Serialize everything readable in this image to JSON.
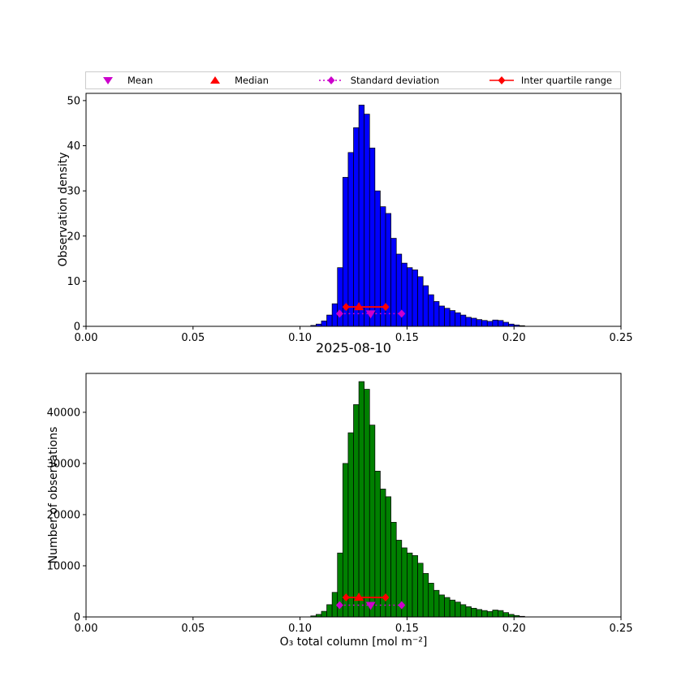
{
  "figure": {
    "title": "2025-08-10",
    "xlabel": "O₃ total column [mol m⁻²]",
    "background": "#ffffff"
  },
  "legend": {
    "items": [
      {
        "label": "Mean",
        "marker": "triangle-down",
        "line": "none",
        "color": "#cc00cc"
      },
      {
        "label": "Median",
        "marker": "triangle-up",
        "line": "none",
        "color": "#ff0000"
      },
      {
        "label": "Standard deviation",
        "marker": "diamond",
        "line": "dotted",
        "color": "#cc00cc"
      },
      {
        "label": "Inter quartile range",
        "marker": "diamond",
        "line": "solid",
        "color": "#ff0000"
      }
    ]
  },
  "chart_data": [
    {
      "type": "bar",
      "name": "observation-density-histogram",
      "ylabel": "Observation density",
      "bar_color": "#0000ff",
      "edge_color": "#000000",
      "bin_start": 0.105,
      "bin_width": 0.0025,
      "values": [
        0.2,
        0.5,
        1.2,
        2.5,
        5,
        13,
        33,
        38.5,
        44,
        49,
        47,
        39.5,
        30,
        26.5,
        25,
        19.5,
        16,
        14,
        13,
        12.5,
        11,
        9,
        7,
        5.5,
        4.5,
        4,
        3.5,
        3,
        2.5,
        2,
        1.8,
        1.5,
        1.3,
        1.1,
        1.4,
        1.3,
        0.9,
        0.5,
        0.3,
        0.15
      ],
      "xlim": [
        0,
        0.25
      ],
      "ylim": [
        0,
        51.6
      ],
      "xticks": {
        "values": [
          0,
          0.05,
          0.1,
          0.15,
          0.2,
          0.25
        ],
        "labels": [
          "0.00",
          "0.05",
          "0.10",
          "0.15",
          "0.20",
          "0.25"
        ]
      },
      "yticks": {
        "values": [
          0,
          10,
          20,
          30,
          40,
          50
        ],
        "labels": [
          "0",
          "10",
          "20",
          "30",
          "40",
          "50"
        ]
      },
      "marker_colors": {
        "mean": "#cc00cc",
        "median": "#ff0000",
        "std": "#cc00cc",
        "iqr": "#ff0000"
      },
      "markers": {
        "mean": {
          "x": 0.133,
          "y": 2.8
        },
        "median": {
          "x": 0.1275,
          "y": 4.3
        },
        "std": {
          "x1": 0.1185,
          "x2": 0.1475,
          "y": 2.8
        },
        "iqr": {
          "x1": 0.1215,
          "x2": 0.14,
          "y": 4.3
        }
      }
    },
    {
      "type": "bar",
      "name": "number-of-observations-histogram",
      "ylabel": "Number of observations",
      "bar_color": "#008000",
      "edge_color": "#000000",
      "bin_start": 0.105,
      "bin_width": 0.0025,
      "values": [
        200,
        500,
        1100,
        2400,
        4800,
        12500,
        30000,
        36000,
        41500,
        46000,
        44500,
        37500,
        28500,
        25000,
        23500,
        18500,
        15000,
        13500,
        12500,
        12000,
        10500,
        8500,
        6600,
        5200,
        4300,
        3800,
        3300,
        2900,
        2400,
        2000,
        1700,
        1450,
        1250,
        1050,
        1350,
        1250,
        850,
        500,
        280,
        120
      ],
      "xlim": [
        0,
        0.25
      ],
      "ylim": [
        0,
        47600
      ],
      "xticks": {
        "values": [
          0,
          0.05,
          0.1,
          0.15,
          0.2,
          0.25
        ],
        "labels": [
          "0.00",
          "0.05",
          "0.10",
          "0.15",
          "0.20",
          "0.25"
        ]
      },
      "yticks": {
        "values": [
          0,
          10000,
          20000,
          30000,
          40000
        ],
        "labels": [
          "0",
          "10000",
          "20000",
          "30000",
          "40000"
        ]
      },
      "marker_colors": {
        "mean": "#cc00cc",
        "median": "#ff0000",
        "std": "#cc00cc",
        "iqr": "#ff0000"
      },
      "markers": {
        "mean": {
          "x": 0.133,
          "y": 2300
        },
        "median": {
          "x": 0.1275,
          "y": 3800
        },
        "std": {
          "x1": 0.1185,
          "x2": 0.1475,
          "y": 2300
        },
        "iqr": {
          "x1": 0.1215,
          "x2": 0.14,
          "y": 3800
        }
      }
    }
  ]
}
